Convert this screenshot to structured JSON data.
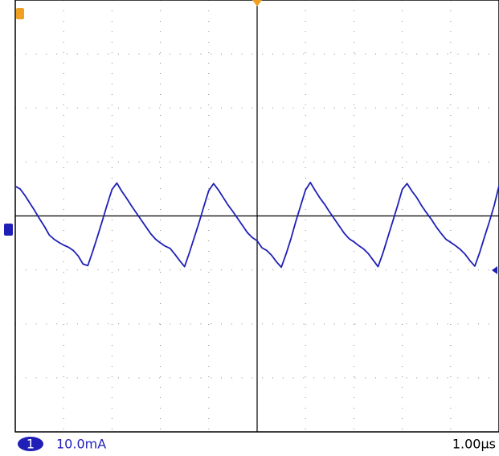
{
  "chart_data": {
    "type": "line",
    "channel": "1",
    "channel_scale": "10.0mA",
    "timebase": "1.00µs",
    "x": [
      0,
      0.1,
      0.2,
      0.3,
      0.4,
      0.5,
      0.6,
      0.7,
      0.8,
      0.9,
      1,
      1.1,
      1.2,
      1.3,
      1.4,
      1.5,
      1.6,
      1.7,
      1.8,
      1.9,
      2,
      2.1,
      2.2,
      2.3,
      2.4,
      2.5,
      2.6,
      2.7,
      2.8,
      2.9,
      3,
      3.1,
      3.2,
      3.3,
      3.4,
      3.5,
      3.6,
      3.7,
      3.8,
      3.9,
      4,
      4.1,
      4.2,
      4.3,
      4.4,
      4.5,
      4.6,
      4.7,
      4.8,
      4.9,
      5,
      5.1,
      5.2,
      5.3,
      5.4,
      5.5,
      5.6,
      5.7,
      5.8,
      5.9,
      6,
      6.1,
      6.2,
      6.3,
      6.4,
      6.5,
      6.6,
      6.7,
      6.8,
      6.9,
      7,
      7.1,
      7.2,
      7.3,
      7.4,
      7.5,
      7.6,
      7.7,
      7.8,
      7.9,
      8,
      8.1,
      8.2,
      8.3,
      8.4,
      8.5,
      8.6,
      8.7,
      8.8,
      8.9,
      9,
      9.1,
      9.2,
      9.3,
      9.4,
      9.5,
      9.6,
      9.7,
      9.8,
      9.9,
      10
    ],
    "series": [
      {
        "name": "1",
        "color": "#1f1fb8",
        "values": [
          5.5,
          5.0,
          3.8,
          2.4,
          1.0,
          -0.5,
          -1.9,
          -3.5,
          -4.3,
          -4.9,
          -5.4,
          -5.8,
          -6.4,
          -7.4,
          -8.9,
          -9.2,
          -6.6,
          -3.8,
          -0.9,
          2.1,
          4.9,
          6.1,
          4.6,
          3.3,
          1.9,
          0.6,
          -0.7,
          -2.0,
          -3.3,
          -4.3,
          -5.0,
          -5.6,
          -6.0,
          -7.1,
          -8.3,
          -9.4,
          -6.8,
          -4.0,
          -1.2,
          1.8,
          4.7,
          6.0,
          4.8,
          3.4,
          2.0,
          0.8,
          -0.5,
          -1.8,
          -3.1,
          -4.0,
          -4.6,
          -5.9,
          -6.4,
          -7.3,
          -8.5,
          -9.5,
          -7.0,
          -4.2,
          -1.0,
          1.9,
          4.8,
          6.2,
          4.7,
          3.3,
          2.1,
          0.7,
          -0.6,
          -1.9,
          -3.2,
          -4.2,
          -4.8,
          -5.5,
          -6.1,
          -7.0,
          -8.2,
          -9.4,
          -6.9,
          -4.0,
          -1.1,
          1.8,
          4.9,
          6.0,
          4.6,
          3.4,
          1.9,
          0.6,
          -0.6,
          -2.0,
          -3.2,
          -4.3,
          -4.9,
          -5.5,
          -6.2,
          -7.1,
          -8.3,
          -9.3,
          -6.8,
          -3.9,
          -1.1,
          1.9,
          5.6
        ]
      }
    ],
    "xlim": [
      0,
      10
    ],
    "ylim": [
      -40,
      40
    ],
    "xticks": [
      0,
      1,
      2,
      3,
      4,
      5,
      6,
      7,
      8,
      9,
      10
    ],
    "yticks": [
      -40,
      -30,
      -20,
      -10,
      0,
      10,
      20,
      30,
      40
    ],
    "grid": true
  }
}
